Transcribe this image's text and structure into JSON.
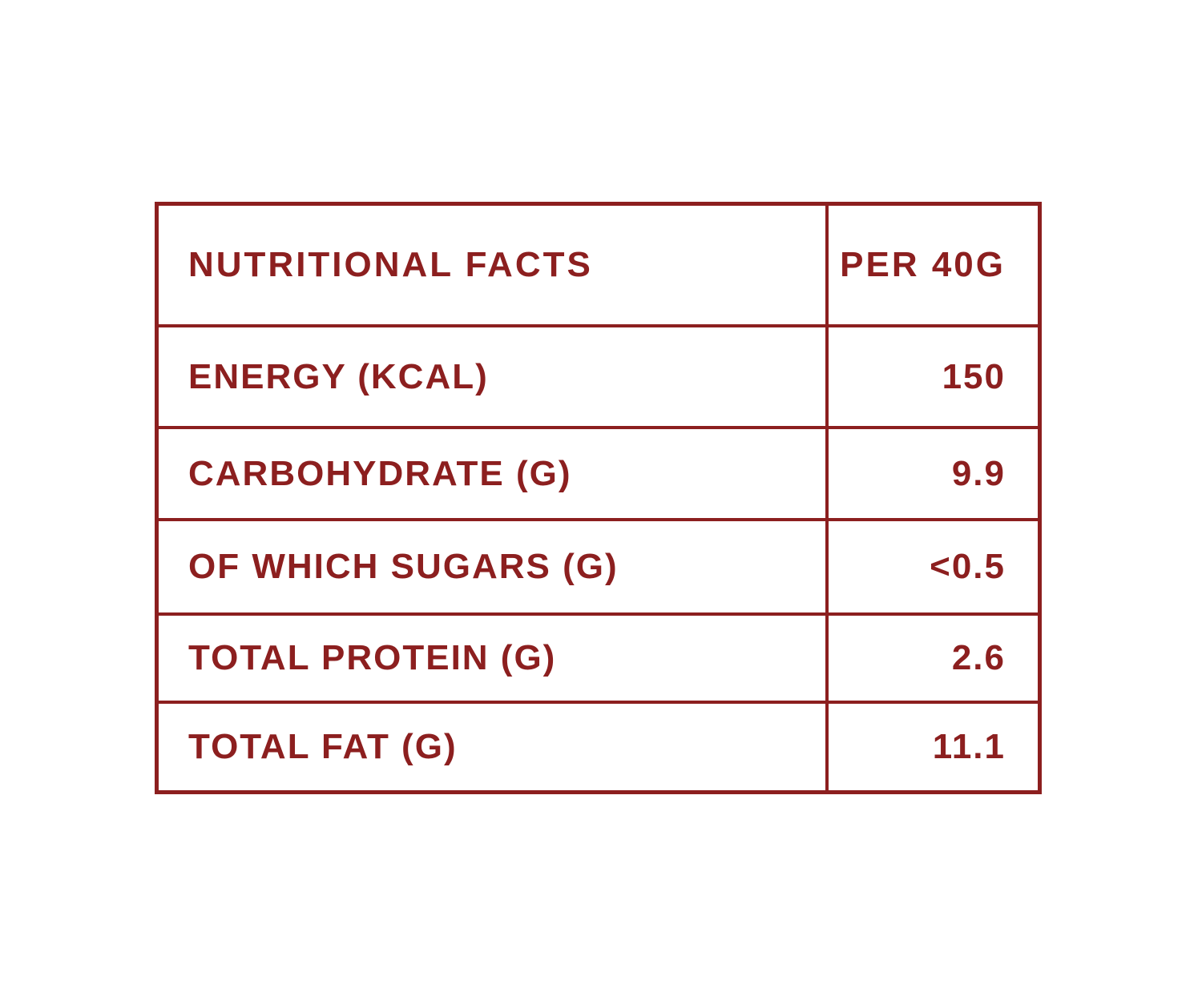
{
  "colors": {
    "accent": "#8C1F1F",
    "background": "#FFFFFF"
  },
  "chart_data": {
    "type": "table",
    "title": "NUTRITIONAL FACTS",
    "columns": [
      "NUTRITIONAL FACTS",
      "PER 40G"
    ],
    "rows": [
      {
        "label": "ENERGY (KCAL)",
        "value": "150"
      },
      {
        "label": "CARBOHYDRATE (G)",
        "value": "9.9"
      },
      {
        "label": "OF WHICH SUGARS (G)",
        "value": "<0.5"
      },
      {
        "label": "TOTAL PROTEIN (G)",
        "value": "2.6"
      },
      {
        "label": "TOTAL FAT (G)",
        "value": "11.1"
      }
    ]
  },
  "table": {
    "header": {
      "label": "NUTRITIONAL FACTS",
      "value": "PER 40G"
    },
    "rows": [
      {
        "label": "ENERGY (KCAL)",
        "value": "150"
      },
      {
        "label": "CARBOHYDRATE (G)",
        "value": "9.9"
      },
      {
        "label": "OF WHICH SUGARS (G)",
        "value": "<0.5"
      },
      {
        "label": "TOTAL PROTEIN (G)",
        "value": "2.6"
      },
      {
        "label": "TOTAL FAT (G)",
        "value": "11.1"
      }
    ]
  }
}
